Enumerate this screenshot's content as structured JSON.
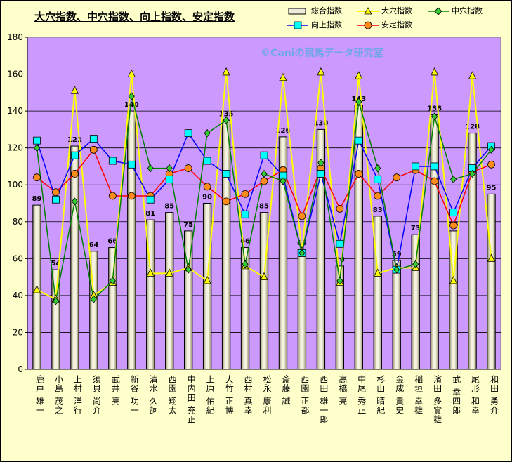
{
  "title": "大穴指数、中穴指数、向上指数、安定指数",
  "watermark": "©Caniの競馬データ研究室",
  "legend": {
    "total": "総合指数",
    "anaoana": "大穴指数",
    "chuana": "中穴指数",
    "kojo": "向上指数",
    "antei": "安定指数"
  },
  "colors": {
    "plot_bg": "#cc99ff",
    "chart_bg": "#ffffcc",
    "bar": "#ecead8",
    "anaoana": "#ffff00",
    "chuana": "#008000",
    "kojo": "#0000ff",
    "antei": "#ff0000",
    "antei_marker": "#ff8c1a",
    "kojo_marker": "#00ffff"
  },
  "chart_data": {
    "type": "bar",
    "ylim": [
      0,
      180
    ],
    "yticks": [
      "0",
      "20",
      "40",
      "60",
      "80",
      "100",
      "120",
      "140",
      "160",
      "180"
    ],
    "grid": true,
    "categories": [
      "鹿戸 雄一",
      "小島 茂之",
      "上村 洋行",
      "須貝 尚介",
      "武井 亮",
      "新谷 功一",
      "清水 久詞",
      "西園 翔太",
      "中内田 充正",
      "上原 佑紀",
      "大竹 正博",
      "西村 真幸",
      "松永 康利",
      "斎藤 誠",
      "西園 正都",
      "西田 雄一郎",
      "高橋 亮",
      "中尾 秀正",
      "杉山 晴紀",
      "金成 貴史",
      "稲垣 幸雄",
      "濱田 多實雄",
      "武 幸四郎",
      "尾形 和幸",
      "和田 勇介"
    ],
    "series": [
      {
        "name": "総合指数",
        "kind": "bar",
        "values": [
          89,
          54,
          121,
          64,
          66,
          140,
          81,
          85,
          75,
          90,
          135,
          66,
          85,
          126,
          65,
          130,
          56,
          143,
          83,
          59,
          73,
          138,
          75,
          128,
          95
        ]
      },
      {
        "name": "大穴指数",
        "kind": "line",
        "values": [
          43,
          38,
          151,
          40,
          47,
          160,
          52,
          52,
          55,
          48,
          161,
          56,
          50,
          158,
          64,
          161,
          47,
          159,
          52,
          55,
          55,
          161,
          48,
          159,
          60
        ]
      },
      {
        "name": "中穴指数",
        "kind": "line",
        "values": [
          120,
          37,
          91,
          38,
          48,
          148,
          109,
          109,
          54,
          128,
          135,
          57,
          106,
          102,
          63,
          112,
          48,
          145,
          109,
          54,
          57,
          137,
          103,
          106,
          119
        ]
      },
      {
        "name": "向上指数",
        "kind": "line",
        "values": [
          124,
          92,
          116,
          125,
          113,
          111,
          92,
          103,
          128,
          113,
          106,
          84,
          116,
          105,
          63,
          106,
          68,
          124,
          103,
          54,
          110,
          110,
          85,
          109,
          121
        ]
      },
      {
        "name": "安定指数",
        "kind": "line",
        "values": [
          104,
          96,
          106,
          119,
          94,
          94,
          94,
          106,
          109,
          99,
          91,
          95,
          102,
          108,
          83,
          109,
          87,
          106,
          94,
          104,
          108,
          102,
          78,
          107,
          111
        ]
      }
    ],
    "bar_labels": [
      "89",
      "54",
      "121",
      "64",
      "66",
      "140",
      "81",
      "85",
      "75",
      "90",
      "135",
      "66",
      "85",
      "126",
      "65",
      "130",
      "56",
      "143",
      "83",
      "59",
      "73",
      "138",
      "75",
      "128",
      "95"
    ]
  }
}
